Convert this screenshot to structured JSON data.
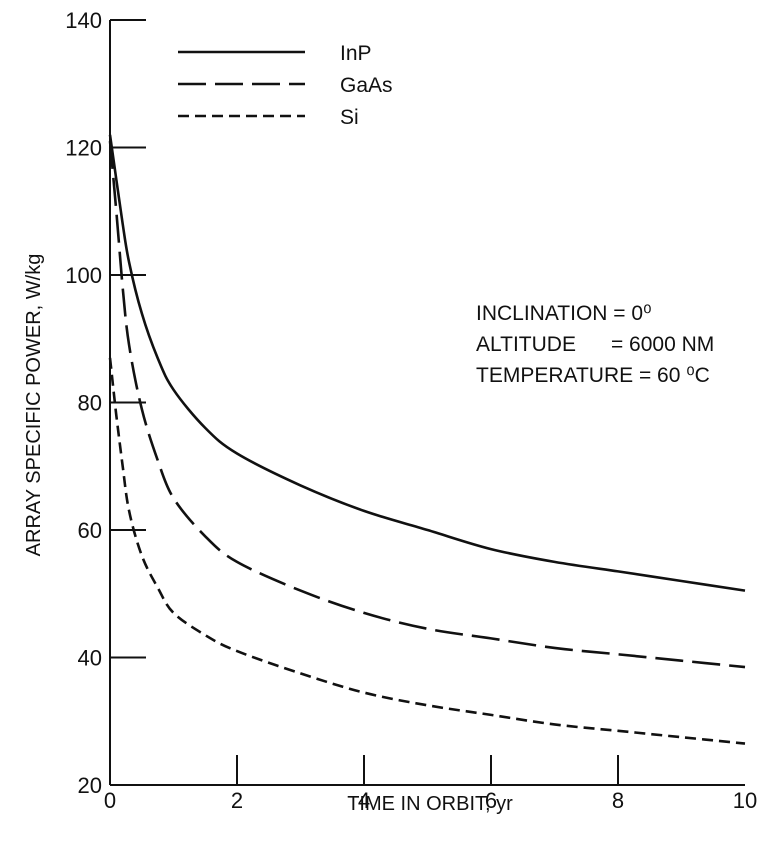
{
  "chart_data": {
    "type": "line",
    "title": "",
    "xlabel": "TIME IN ORBIT, yr",
    "ylabel": "ARRAY SPECIFIC POWER, W/kg",
    "xlim": [
      0,
      10
    ],
    "ylim": [
      20,
      140
    ],
    "xticks": [
      0,
      2,
      4,
      6,
      8,
      10
    ],
    "yticks": [
      20,
      40,
      60,
      80,
      100,
      120,
      140
    ],
    "x_tick_labels": [
      "0",
      "2",
      "4",
      "6",
      "8",
      "10"
    ],
    "y_tick_labels": [
      "20",
      "40",
      "60",
      "80",
      "100",
      "120",
      "140"
    ],
    "grid": false,
    "legend_position": "top-left",
    "series": [
      {
        "name": "InP",
        "line_style": "solid",
        "x": [
          0,
          0.1,
          0.2,
          0.3,
          0.5,
          0.75,
          1,
          1.5,
          2,
          3,
          4,
          5,
          6,
          7,
          8,
          9,
          10
        ],
        "y": [
          122,
          115,
          108,
          102,
          94,
          87,
          82,
          76,
          72,
          67,
          63,
          60,
          57,
          55,
          53.5,
          52,
          50.5
        ]
      },
      {
        "name": "GaAs",
        "line_style": "long-dash",
        "x": [
          0,
          0.1,
          0.2,
          0.3,
          0.5,
          0.75,
          1,
          1.5,
          2,
          3,
          4,
          5,
          6,
          7,
          8,
          9,
          10
        ],
        "y": [
          121,
          110,
          98,
          89,
          79,
          71,
          65,
          59,
          55,
          50.5,
          47,
          44.5,
          43,
          41.5,
          40.5,
          39.5,
          38.5
        ]
      },
      {
        "name": "Si",
        "line_style": "short-dash",
        "x": [
          0,
          0.1,
          0.2,
          0.3,
          0.5,
          0.75,
          1,
          1.5,
          2,
          3,
          4,
          5,
          6,
          7,
          8,
          9,
          10
        ],
        "y": [
          87,
          78,
          70,
          63,
          56,
          51,
          47,
          43.5,
          41,
          37.5,
          34.5,
          32.5,
          31,
          29.5,
          28.5,
          27.5,
          26.5
        ]
      }
    ],
    "annotations": [
      "INCLINATION = 0⁰",
      "ALTITUDE      = 6000 NM",
      "TEMPERATURE = 60 ⁰C"
    ]
  }
}
